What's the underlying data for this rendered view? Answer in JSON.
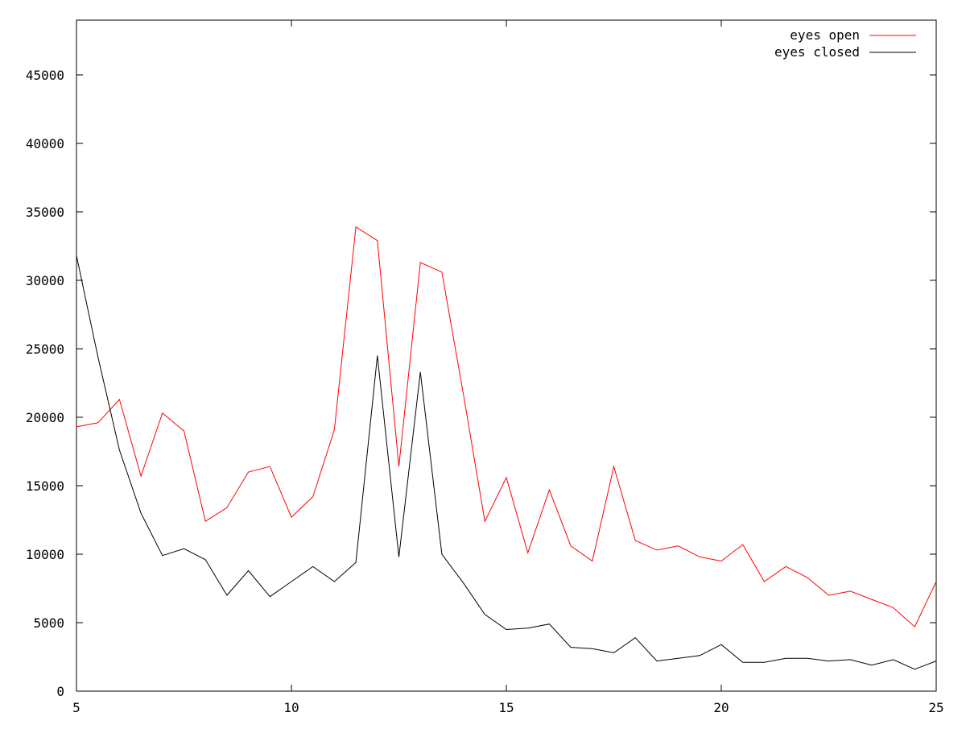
{
  "chart_data": {
    "type": "line",
    "title": "",
    "xlabel": "",
    "ylabel": "",
    "xlim": [
      5,
      25
    ],
    "ylim": [
      0,
      49000
    ],
    "x_ticks": [
      5,
      10,
      15,
      20,
      25
    ],
    "x_tick_labels": [
      "5",
      "10",
      "15",
      "20",
      "25"
    ],
    "y_ticks": [
      0,
      5000,
      10000,
      15000,
      20000,
      25000,
      30000,
      35000,
      40000,
      45000
    ],
    "y_tick_labels": [
      "0",
      "5000",
      "10000",
      "15000",
      "20000",
      "25000",
      "30000",
      "35000",
      "40000",
      "45000"
    ],
    "grid": false,
    "legend_position": "top-right",
    "x": [
      5,
      5.5,
      6,
      6.5,
      7,
      7.5,
      8,
      8.5,
      9,
      9.5,
      10,
      10.5,
      11,
      11.5,
      12,
      12.5,
      13,
      13.5,
      14,
      14.5,
      15,
      15.5,
      16,
      16.5,
      17,
      17.5,
      18,
      18.5,
      19,
      19.5,
      20,
      20.5,
      21,
      21.5,
      22,
      22.5,
      23,
      23.5,
      24,
      24.5,
      25
    ],
    "series": [
      {
        "name": "eyes open",
        "color": "#ff0000",
        "values": [
          19300,
          19600,
          21300,
          15700,
          20300,
          19000,
          12400,
          13400,
          16000,
          16400,
          12700,
          14200,
          19100,
          33900,
          32900,
          16400,
          31300,
          30600,
          21700,
          12400,
          15600,
          10100,
          14700,
          10600,
          9500,
          16400,
          11000,
          10300,
          10600,
          9800,
          9500,
          10700,
          8000,
          9100,
          8300,
          7000,
          7300,
          6700,
          6100,
          4700,
          8000
        ]
      },
      {
        "name": "eyes closed",
        "color": "#000000",
        "values": [
          31800,
          24400,
          17600,
          13000,
          9900,
          10400,
          9600,
          7000,
          8800,
          6900,
          8000,
          9100,
          8000,
          9400,
          24500,
          9800,
          23300,
          10000,
          7900,
          5600,
          4500,
          4600,
          4900,
          3200,
          3100,
          2800,
          3900,
          2200,
          2400,
          2600,
          3400,
          2100,
          2100,
          2400,
          2400,
          2200,
          2300,
          1900,
          2300,
          1600,
          2200
        ]
      }
    ]
  }
}
